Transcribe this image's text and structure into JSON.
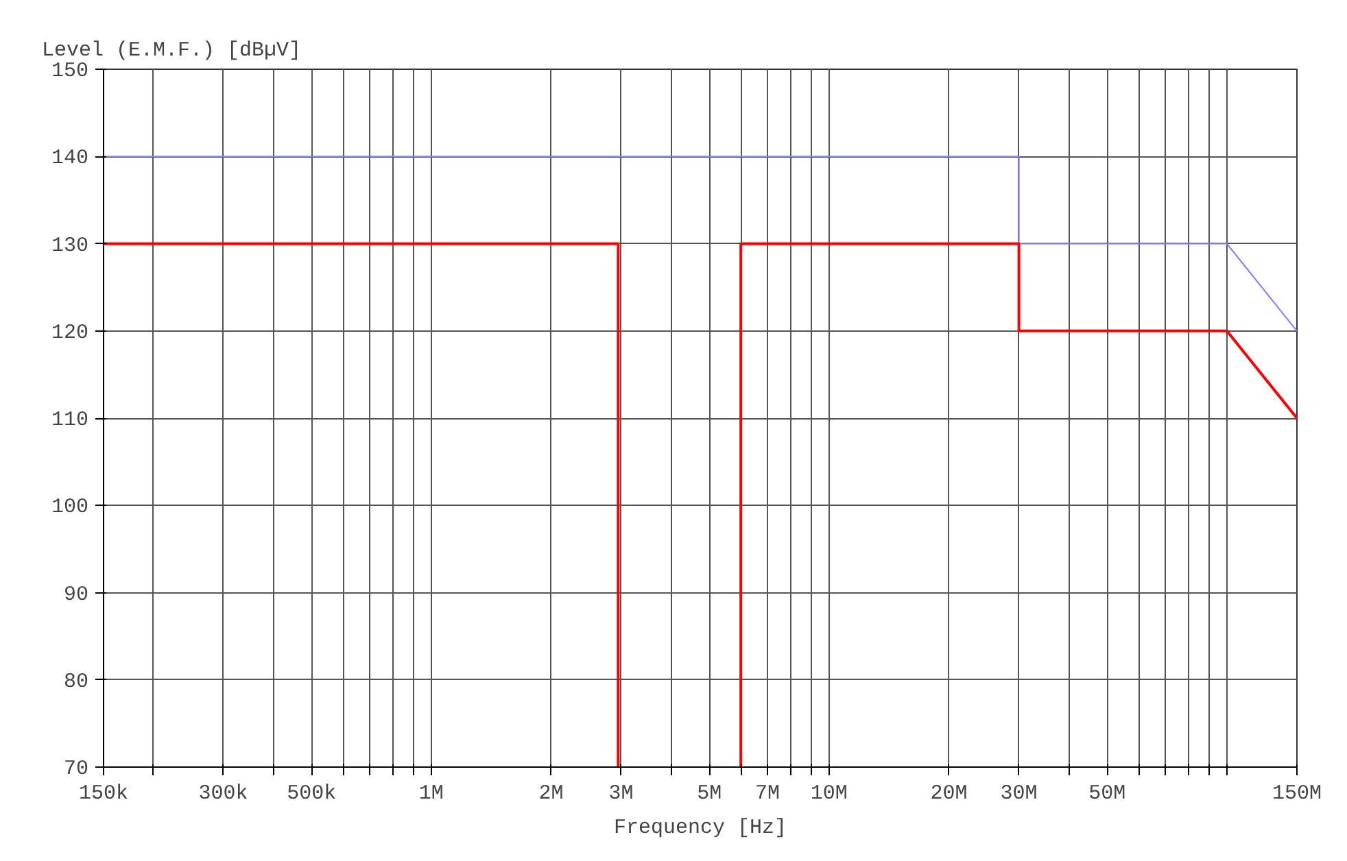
{
  "chart_data": {
    "type": "line",
    "ylabel": "Level (E.M.F.) [dBµV]",
    "xlabel": "Frequency [Hz]",
    "log": "x",
    "grid": true,
    "marker": "none",
    "line_style": "solid",
    "xlim": [
      150000,
      150000000
    ],
    "ylim": [
      70,
      150
    ],
    "xticks": [
      {
        "value": 150000,
        "label": "150k"
      },
      {
        "value": 200000,
        "label": null
      },
      {
        "value": 300000,
        "label": "300k"
      },
      {
        "value": 400000,
        "label": null
      },
      {
        "value": 500000,
        "label": "500k"
      },
      {
        "value": 600000,
        "label": null
      },
      {
        "value": 700000,
        "label": null
      },
      {
        "value": 800000,
        "label": null
      },
      {
        "value": 900000,
        "label": null
      },
      {
        "value": 1000000,
        "label": "1M"
      },
      {
        "value": 2000000,
        "label": "2M"
      },
      {
        "value": 3000000,
        "label": "3M"
      },
      {
        "value": 4000000,
        "label": null
      },
      {
        "value": 5000000,
        "label": "5M"
      },
      {
        "value": 6000000,
        "label": null
      },
      {
        "value": 7000000,
        "label": "7M"
      },
      {
        "value": 8000000,
        "label": null
      },
      {
        "value": 9000000,
        "label": null
      },
      {
        "value": 10000000,
        "label": "10M"
      },
      {
        "value": 20000000,
        "label": "20M"
      },
      {
        "value": 30000000,
        "label": "30M"
      },
      {
        "value": 40000000,
        "label": null
      },
      {
        "value": 50000000,
        "label": "50M"
      },
      {
        "value": 60000000,
        "label": null
      },
      {
        "value": 70000000,
        "label": null
      },
      {
        "value": 80000000,
        "label": null
      },
      {
        "value": 90000000,
        "label": null
      },
      {
        "value": 100000000,
        "label": null
      },
      {
        "value": 150000000,
        "label": "150M"
      }
    ],
    "yticks": [
      70,
      80,
      90,
      100,
      110,
      120,
      130,
      140,
      150
    ],
    "series": [
      {
        "color": "#8080ff",
        "x": [
          150000,
          30000000,
          30000000,
          100000000,
          150000000
        ],
        "values": [
          140,
          140,
          130,
          130,
          120
        ]
      },
      {
        "color": "#ff0000",
        "x": [
          150000,
          2950000,
          2950000,
          4000000,
          6000000,
          6000000,
          30000000,
          30000000,
          100000000,
          150000000
        ],
        "values": [
          130,
          130,
          70,
          null,
          70,
          130,
          130,
          120,
          120,
          110
        ]
      }
    ]
  }
}
